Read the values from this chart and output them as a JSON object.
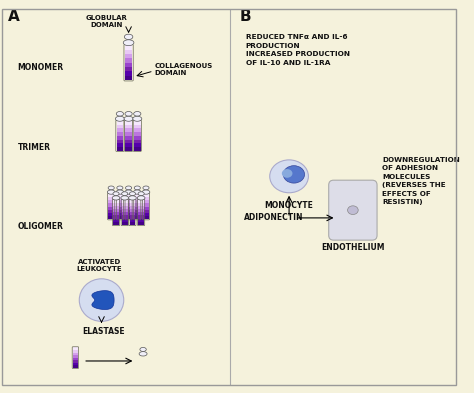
{
  "bg_color": "#f5f2dc",
  "text_color": "#111111",
  "purple_colors": [
    "#f5e8fc",
    "#e8c8f5",
    "#d4a0ec",
    "#bb77dd",
    "#9944cc",
    "#7722aa",
    "#5500aa",
    "#440088"
  ],
  "white_cream": "#f8f8f0",
  "blue_cell": "#7799cc",
  "blue_cell_dark": "#3355aa",
  "blue_cell_light": "#aabbdd",
  "gray_cell": "#c8cce0",
  "gray_cell_light": "#dde0ee",
  "endothelium_color": "#e0e0e8",
  "border_color": "#999999",
  "label_A": "A",
  "label_B": "B",
  "label_monomer": "MONOMER",
  "label_trimer": "TRIMER",
  "label_oligomer": "OLIGOMER",
  "label_globular": "GLOBULAR\nDOMAIN",
  "label_collagenous": "COLLAGENOUS\nDOMAIN",
  "label_activated": "ACTIVATED\nLEUKOCYTE",
  "label_elastase": "ELASTASE",
  "label_monocyte": "MONOCYTE",
  "label_adiponectin": "ADIPONECTIN",
  "label_endothelium": "ENDOTHELIUM",
  "text_reduced": "REDUCED TNFα AND IL-6\nPRODUCTION\nINCREASED PRODUCTION\nOF IL-10 AND IL-1RA",
  "text_downreg": "DOWNREGULATION\nOF ADHESION\nMOLECULES\n(REVERSES THE\nEFFECTS OF\nRESISTIN)"
}
